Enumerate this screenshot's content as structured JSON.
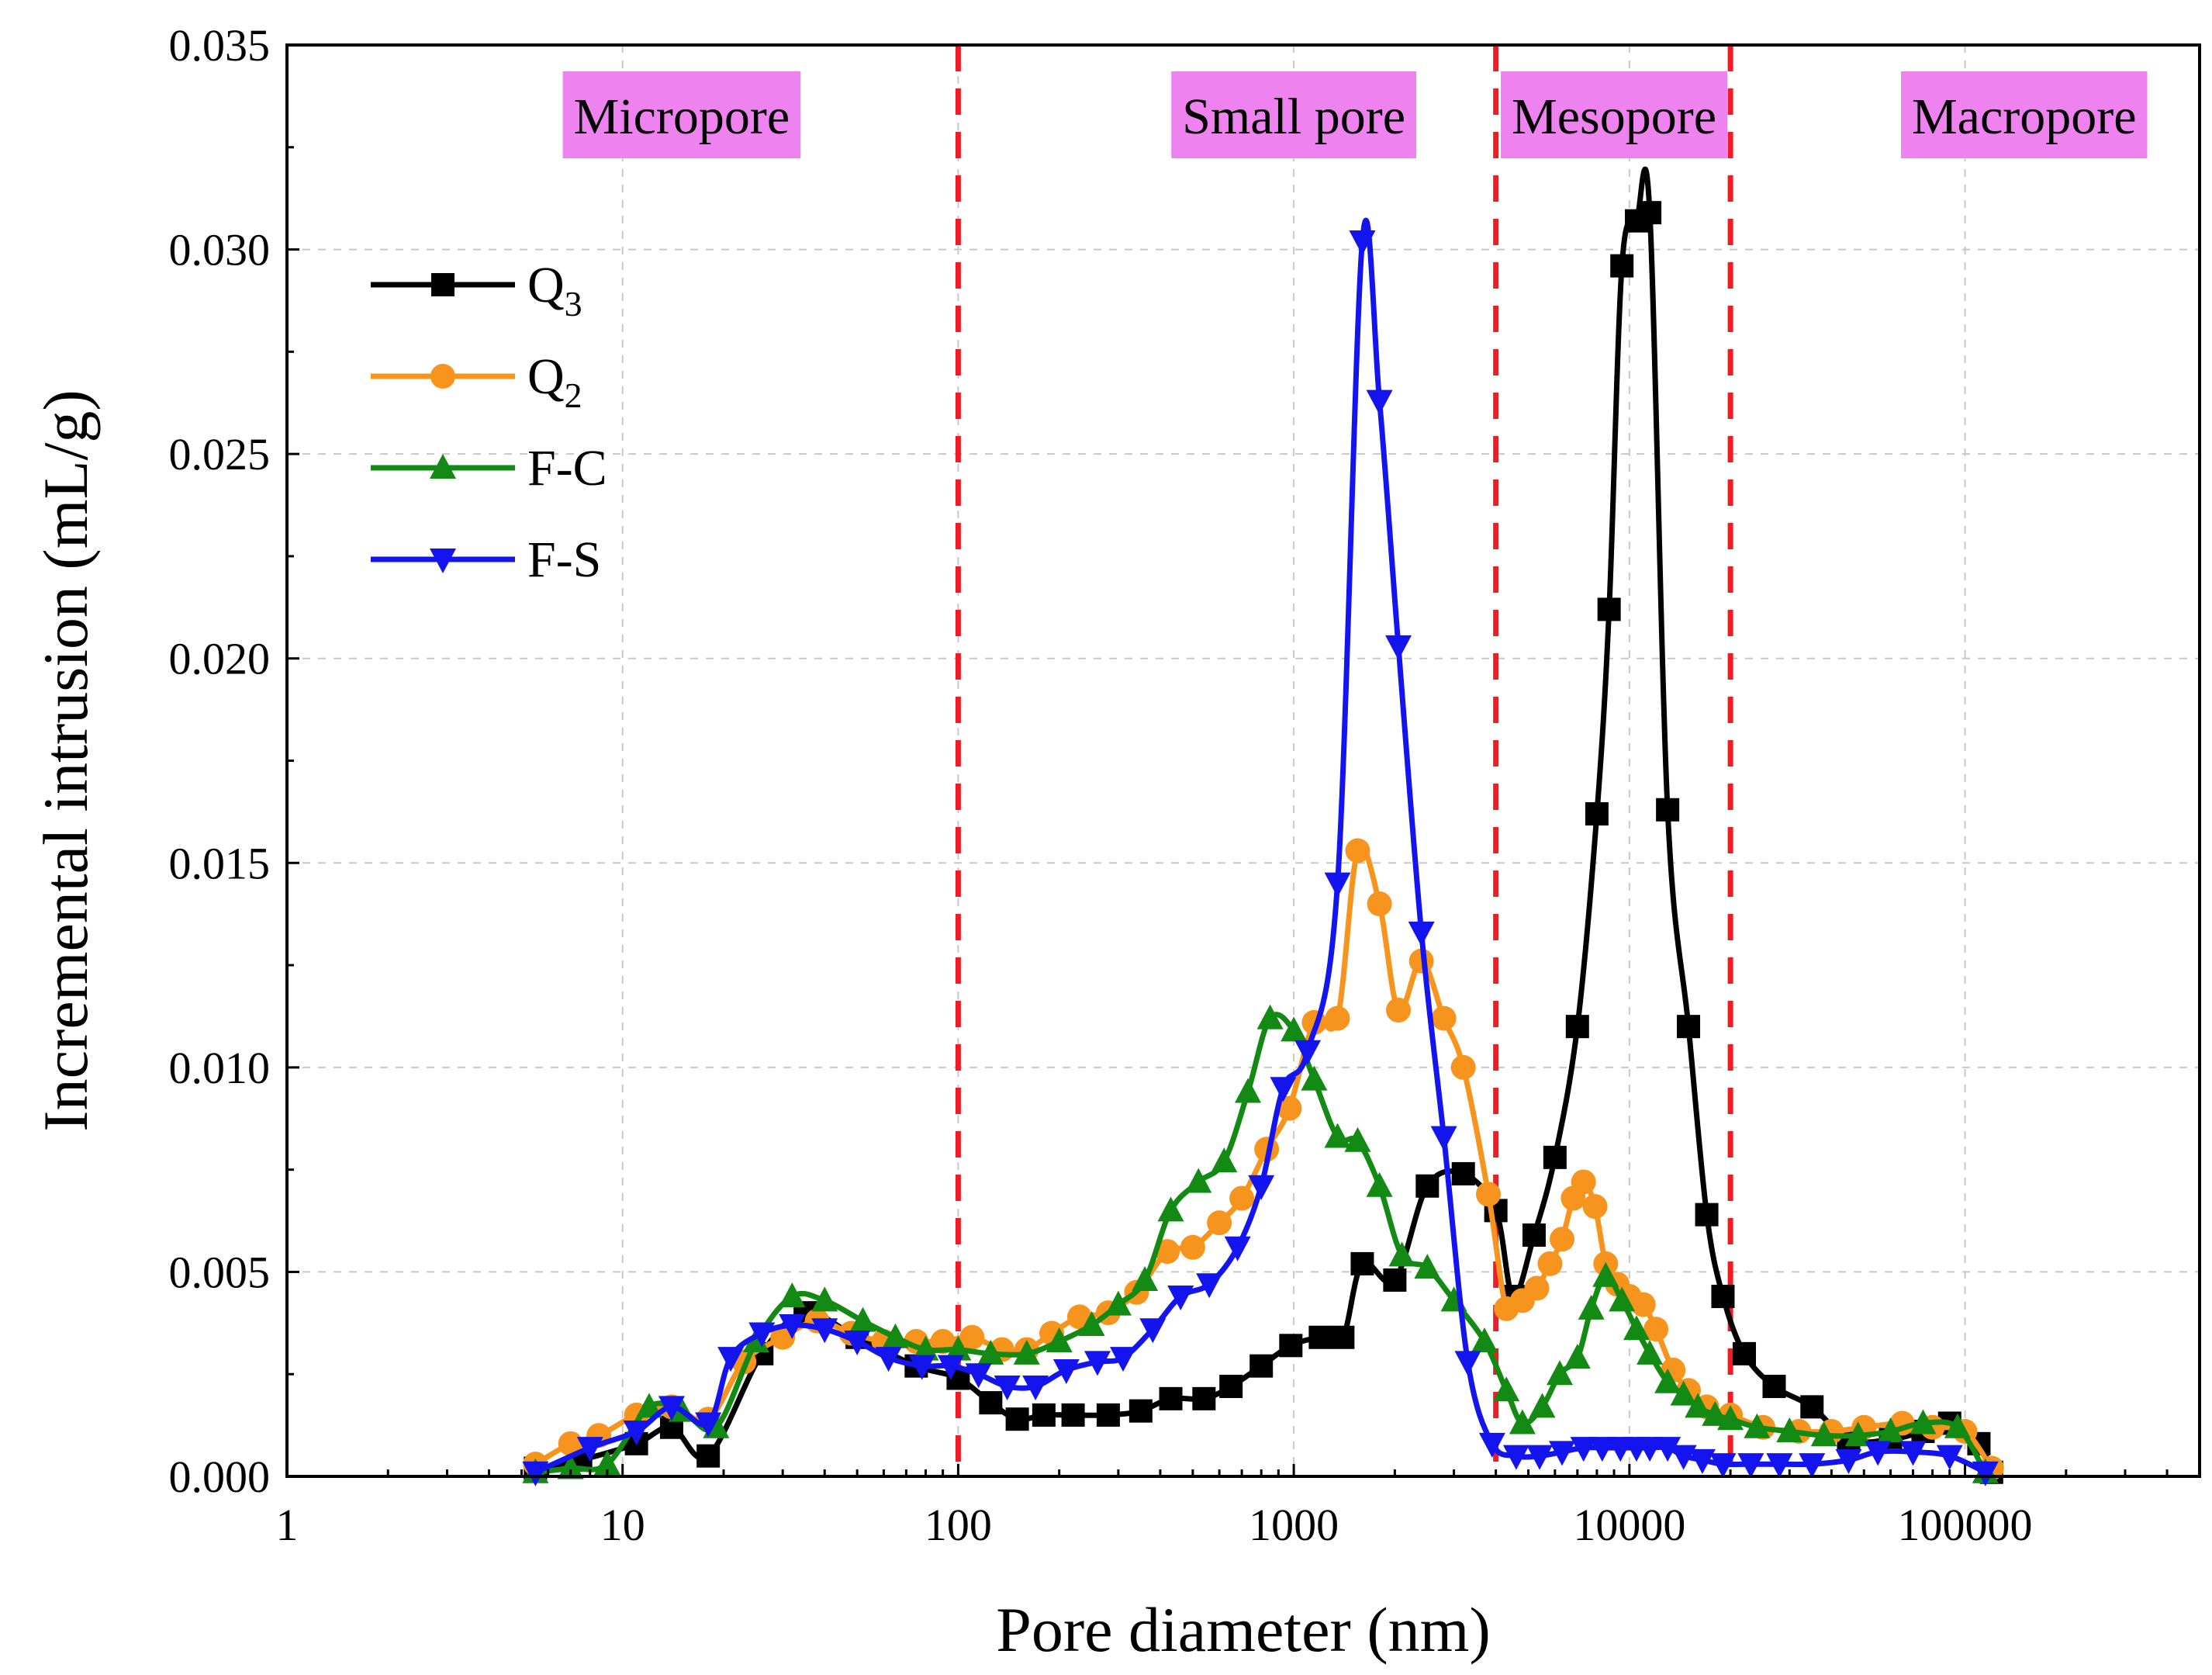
{
  "chart_data": {
    "type": "line",
    "x_scale": "log",
    "xlabel": "Pore diameter (nm)",
    "ylabel": "Incremental intrusion (mL/g)",
    "xlim": [
      1,
      500000
    ],
    "ylim": [
      0,
      0.035
    ],
    "x_ticks": [
      1,
      10,
      100,
      1000,
      10000,
      100000
    ],
    "x_tick_labels": [
      "1",
      "10",
      "100",
      "1000",
      "10000",
      "100000"
    ],
    "y_ticks": [
      0,
      0.005,
      0.01,
      0.015,
      0.02,
      0.025,
      0.03,
      0.035
    ],
    "y_tick_labels": [
      "0.000",
      "0.005",
      "0.010",
      "0.015",
      "0.020",
      "0.025",
      "0.030",
      "0.035"
    ],
    "grid": true,
    "legend_position": "top-left",
    "boundaries": [
      100,
      4000,
      20000
    ],
    "regions": [
      {
        "label": "Micropore",
        "x": 15
      },
      {
        "label": "Small pore",
        "x": 1000
      },
      {
        "label": "Mesopore",
        "x": 9000
      },
      {
        "label": "Macropore",
        "x": 150000
      }
    ],
    "region_color": "#ee82ee",
    "boundary_color": "#ee1c25",
    "series": [
      {
        "name": "Q3",
        "label_main": "Q",
        "label_sub": "3",
        "color": "#000000",
        "marker": "square",
        "x": [
          5.5,
          7.5,
          11,
          14,
          18,
          26,
          35,
          50,
          75,
          100,
          125,
          150,
          180,
          220,
          280,
          350,
          430,
          540,
          650,
          800,
          980,
          1200,
          1400,
          1600,
          2000,
          2500,
          3200,
          4000,
          4500,
          5200,
          6000,
          7000,
          8000,
          8700,
          9500,
          10500,
          11500,
          13000,
          15000,
          17000,
          19000,
          22000,
          27000,
          35000,
          45000,
          60000,
          75000,
          90000,
          110000,
          120000
        ],
        "y": [
          0.0002,
          0.0004,
          0.0008,
          0.0012,
          0.0005,
          0.003,
          0.004,
          0.0034,
          0.0027,
          0.0024,
          0.0018,
          0.0014,
          0.0015,
          0.0015,
          0.0015,
          0.0016,
          0.0019,
          0.0019,
          0.0022,
          0.0027,
          0.0032,
          0.0034,
          0.0034,
          0.0052,
          0.0048,
          0.0071,
          0.0074,
          0.0065,
          0.0044,
          0.0059,
          0.0078,
          0.011,
          0.0162,
          0.0212,
          0.0296,
          0.0307,
          0.0309,
          0.0163,
          0.011,
          0.0064,
          0.0044,
          0.003,
          0.0022,
          0.0017,
          0.0009,
          0.0009,
          0.0011,
          0.0013,
          0.0008,
          0.0001
        ]
      },
      {
        "name": "Q2",
        "label_main": "Q",
        "label_sub": "2",
        "color": "#f7941d",
        "marker": "circle",
        "x": [
          5.5,
          7,
          8.5,
          11,
          14,
          18,
          23,
          30,
          38,
          48,
          60,
          75,
          90,
          110,
          135,
          160,
          190,
          230,
          280,
          340,
          420,
          500,
          600,
          700,
          830,
          970,
          1150,
          1350,
          1550,
          1800,
          2050,
          2400,
          2800,
          3200,
          3800,
          4300,
          4800,
          5300,
          5800,
          6300,
          6800,
          7300,
          7900,
          8500,
          9200,
          10000,
          11000,
          12000,
          13500,
          15000,
          17000,
          20000,
          25000,
          32000,
          40000,
          50000,
          65000,
          80000,
          100000,
          120000
        ],
        "y": [
          0.0003,
          0.0008,
          0.001,
          0.0015,
          0.0017,
          0.0014,
          0.0028,
          0.0034,
          0.0038,
          0.0035,
          0.0033,
          0.0033,
          0.0033,
          0.0034,
          0.0031,
          0.0031,
          0.0035,
          0.0039,
          0.004,
          0.0045,
          0.0055,
          0.0056,
          0.0062,
          0.0068,
          0.008,
          0.009,
          0.0111,
          0.0112,
          0.0153,
          0.014,
          0.0114,
          0.0126,
          0.0112,
          0.01,
          0.0069,
          0.0041,
          0.0043,
          0.0046,
          0.0052,
          0.0058,
          0.0068,
          0.0072,
          0.0066,
          0.0052,
          0.0047,
          0.0044,
          0.0042,
          0.0036,
          0.0026,
          0.0021,
          0.0017,
          0.0015,
          0.0012,
          0.0011,
          0.0011,
          0.0012,
          0.0013,
          0.0012,
          0.0011,
          0.0002
        ]
      },
      {
        "name": "F-C",
        "label_main": "F-C",
        "label_sub": "",
        "color": "#138a13",
        "marker": "triangle-up",
        "x": [
          5.5,
          7,
          9,
          12,
          15,
          19,
          25,
          32,
          40,
          52,
          65,
          80,
          100,
          125,
          160,
          200,
          250,
          300,
          360,
          430,
          520,
          620,
          730,
          850,
          1000,
          1150,
          1350,
          1550,
          1800,
          2100,
          2500,
          3000,
          3700,
          4300,
          4800,
          5500,
          6200,
          7000,
          7700,
          8500,
          9500,
          10500,
          11500,
          13000,
          14500,
          16000,
          18000,
          20000,
          24000,
          30000,
          38000,
          48000,
          60000,
          75000,
          95000,
          115000
        ],
        "y": [
          0.0001,
          0.0002,
          0.0003,
          0.0017,
          0.0016,
          0.0012,
          0.0033,
          0.0044,
          0.0043,
          0.0038,
          0.0034,
          0.0031,
          0.0031,
          0.003,
          0.003,
          0.0033,
          0.0037,
          0.0042,
          0.0048,
          0.0065,
          0.0072,
          0.0077,
          0.0094,
          0.0112,
          0.0109,
          0.0097,
          0.0083,
          0.0082,
          0.0071,
          0.0054,
          0.0051,
          0.0043,
          0.0033,
          0.0021,
          0.0013,
          0.0017,
          0.0025,
          0.0029,
          0.0041,
          0.0049,
          0.0043,
          0.0036,
          0.003,
          0.0023,
          0.002,
          0.0017,
          0.0015,
          0.0014,
          0.0012,
          0.0011,
          0.001,
          0.001,
          0.0011,
          0.0013,
          0.0012,
          0.0001
        ]
      },
      {
        "name": "F-S",
        "label_main": "F-S",
        "label_sub": "",
        "color": "#1414ee",
        "marker": "triangle-down",
        "x": [
          5.5,
          8,
          11,
          14,
          18,
          21,
          26,
          32,
          40,
          50,
          62,
          78,
          95,
          115,
          140,
          170,
          210,
          260,
          310,
          380,
          460,
          560,
          680,
          800,
          930,
          1100,
          1350,
          1600,
          1800,
          2050,
          2400,
          2800,
          3300,
          3900,
          4600,
          5400,
          6300,
          7300,
          8300,
          9400,
          10500,
          11500,
          13000,
          14500,
          16500,
          19000,
          23000,
          28000,
          35000,
          45000,
          55000,
          70000,
          90000,
          115000
        ],
        "y": [
          0.0001,
          0.0007,
          0.0011,
          0.0017,
          0.0013,
          0.0029,
          0.0035,
          0.0037,
          0.0036,
          0.0033,
          0.0029,
          0.0027,
          0.0027,
          0.0025,
          0.0022,
          0.0022,
          0.0026,
          0.0028,
          0.0029,
          0.0036,
          0.0044,
          0.0047,
          0.0056,
          0.0071,
          0.0095,
          0.0104,
          0.0145,
          0.0302,
          0.0263,
          0.0203,
          0.0133,
          0.0083,
          0.0028,
          0.0008,
          0.0005,
          0.0005,
          0.0006,
          0.0007,
          0.0007,
          0.0007,
          0.0007,
          0.0007,
          0.0007,
          0.0005,
          0.0004,
          0.0003,
          0.0003,
          0.0003,
          0.0003,
          0.0004,
          0.0006,
          0.0006,
          0.0005,
          0.0001
        ]
      }
    ]
  }
}
